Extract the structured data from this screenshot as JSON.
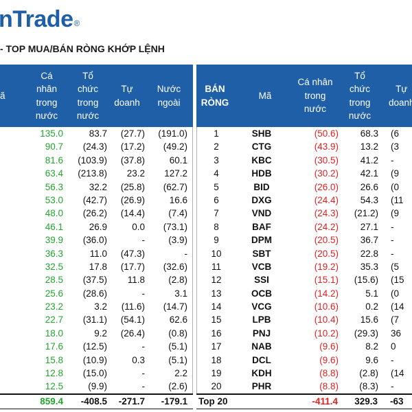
{
  "logo_text": "nTrade",
  "logo_mark": "®",
  "title": "- TOP MUA/BÁN RÒNG KHỚP LỆNH",
  "left": {
    "headers": [
      "ã",
      "Cá\nnhân\ntrong\nnước",
      "Tổ\nchức\ntrong\nnước",
      "Tự\ndoanh",
      "Nước\nngoài"
    ],
    "rows": [
      [
        "135.0",
        "83.7",
        "(27.7)",
        "(191.0)"
      ],
      [
        "90.7",
        "(24.3)",
        "(17.2)",
        "(49.2)"
      ],
      [
        "81.6",
        "(103.9)",
        "(37.8)",
        "60.1"
      ],
      [
        "63.4",
        "(213.8)",
        "23.2",
        "127.2"
      ],
      [
        "56.3",
        "32.2",
        "(25.8)",
        "(62.7)"
      ],
      [
        "53.0",
        "(42.7)",
        "(26.9)",
        "16.6"
      ],
      [
        "48.0",
        "(26.2)",
        "(14.4)",
        "(7.4)"
      ],
      [
        "46.1",
        "26.9",
        "0.0",
        "(73.1)"
      ],
      [
        "39.9",
        "(36.0)",
        "-",
        "(3.9)"
      ],
      [
        "36.3",
        "11.0",
        "(47.3)",
        "-"
      ],
      [
        "32.5",
        "17.8",
        "(17.7)",
        "(32.6)"
      ],
      [
        "28.5",
        "(37.5)",
        "11.8",
        "(2.8)"
      ],
      [
        "25.6",
        "(28.6)",
        "-",
        "3.1"
      ],
      [
        "23.2",
        "3.2",
        "(11.6)",
        "(14.7)"
      ],
      [
        "22.7",
        "(31.1)",
        "(54.1)",
        "62.6"
      ],
      [
        "18.0",
        "9.2",
        "(26.4)",
        "(0.8)"
      ],
      [
        "17.6",
        "(12.5)",
        "-",
        "(5.1)"
      ],
      [
        "15.8",
        "(10.9)",
        "0.3",
        "(5.1)"
      ],
      [
        "12.8",
        "(15.0)",
        "-",
        "2.2"
      ],
      [
        "12.5",
        "(9.9)",
        "-",
        "(2.6)"
      ]
    ],
    "total": [
      "859.4",
      "-408.5",
      "-271.7",
      "-179.1"
    ]
  },
  "right": {
    "headers": [
      "BÁN\nRÒNG",
      "Mã",
      "Cá nhân\ntrong\nnước",
      "Tổ\nchức\ntrong\nnước",
      "Tự\ndoanh"
    ],
    "rows": [
      [
        "1",
        "SHB",
        "(50.6)",
        "68.3",
        "(6"
      ],
      [
        "2",
        "CTG",
        "(43.9)",
        "13.2",
        "(3"
      ],
      [
        "3",
        "KBC",
        "(30.5)",
        "41.2",
        "-"
      ],
      [
        "4",
        "HDB",
        "(30.2)",
        "42.1",
        "(9"
      ],
      [
        "5",
        "BID",
        "(26.0)",
        "26.6",
        "(0"
      ],
      [
        "6",
        "DXG",
        "(24.4)",
        "54.3",
        "(11"
      ],
      [
        "7",
        "VND",
        "(24.3)",
        "(21.2)",
        "(9"
      ],
      [
        "8",
        "BAF",
        "(24.2)",
        "27.1",
        "-"
      ],
      [
        "9",
        "DPM",
        "(20.5)",
        "36.7",
        "-"
      ],
      [
        "10",
        "SBT",
        "(20.5)",
        "22.8",
        "-"
      ],
      [
        "11",
        "VCB",
        "(19.2)",
        "35.3",
        "(5"
      ],
      [
        "12",
        "SSI",
        "(15.1)",
        "(15.6)",
        "(15"
      ],
      [
        "13",
        "OCB",
        "(14.2)",
        "5.1",
        "(0"
      ],
      [
        "14",
        "VCG",
        "(10.6)",
        "0.2",
        "(14"
      ],
      [
        "15",
        "LPB",
        "(10.4)",
        "15.6",
        "(7"
      ],
      [
        "16",
        "PNJ",
        "(10.2)",
        "(29.3)",
        "36"
      ],
      [
        "17",
        "NAB",
        "(9.6)",
        "8.2",
        "0"
      ],
      [
        "18",
        "DCL",
        "(9.6)",
        "9.6",
        "-"
      ],
      [
        "19",
        "KDH",
        "(8.8)",
        "(2.8)",
        "(14"
      ],
      [
        "20",
        "PHR",
        "(8.8)",
        "(8.3)",
        "-"
      ]
    ],
    "total_label": "Top 20",
    "total": [
      "-411.4",
      "329.3",
      "-63"
    ]
  },
  "colors": {
    "header_bg": "#1f5fa8",
    "positive": "#22a52d",
    "negative": "#e02020"
  }
}
